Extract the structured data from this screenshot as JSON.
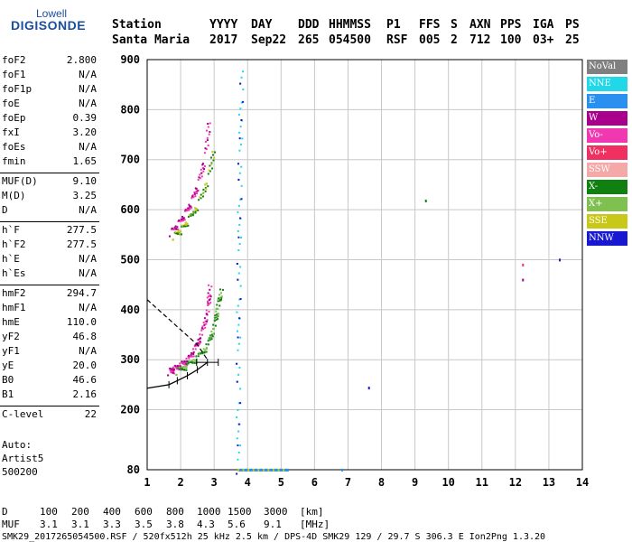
{
  "logo": {
    "top": "Lowell",
    "main": "DIGISONDE"
  },
  "header": {
    "row1": [
      "Station",
      "YYYY",
      "DAY",
      "DDD",
      "HHMMSS",
      "P1",
      "FFS",
      "S",
      "AXN",
      "PPS",
      "IGA",
      "PS"
    ],
    "row2": [
      "Santa Maria",
      "2017",
      "Sep22",
      "265",
      "054500",
      "RSF",
      "005",
      "2",
      "712",
      "100",
      "03+",
      "25"
    ]
  },
  "params_group1": [
    {
      "label": "foF2",
      "value": "2.800"
    },
    {
      "label": "foF1",
      "value": "N/A"
    },
    {
      "label": "foF1p",
      "value": "N/A"
    },
    {
      "label": "foE",
      "value": "N/A"
    },
    {
      "label": "foEp",
      "value": "0.39"
    },
    {
      "label": "fxI",
      "value": "3.20"
    },
    {
      "label": "foEs",
      "value": "N/A"
    },
    {
      "label": "fmin",
      "value": "1.65"
    }
  ],
  "params_group2": [
    {
      "label": "MUF(D)",
      "value": "9.10"
    },
    {
      "label": "M(D)",
      "value": "3.25"
    },
    {
      "label": "D",
      "value": "N/A"
    }
  ],
  "params_group3": [
    {
      "label": "h`F",
      "value": "277.5"
    },
    {
      "label": "h`F2",
      "value": "277.5"
    },
    {
      "label": "h`E",
      "value": "N/A"
    },
    {
      "label": "h`Es",
      "value": "N/A"
    }
  ],
  "params_group4": [
    {
      "label": "hmF2",
      "value": "294.7"
    },
    {
      "label": "hmF1",
      "value": "N/A"
    },
    {
      "label": "hmE",
      "value": "110.0"
    },
    {
      "label": "yF2",
      "value": "46.8"
    },
    {
      "label": "yF1",
      "value": "N/A"
    },
    {
      "label": "yE",
      "value": "20.0"
    },
    {
      "label": "B0",
      "value": "46.6"
    },
    {
      "label": "B1",
      "value": "2.16"
    }
  ],
  "params_group5": [
    {
      "label": "C-level",
      "value": "22"
    }
  ],
  "auto": {
    "line1": "Auto:",
    "line2": "Artist5",
    "line3": "500200"
  },
  "legend": [
    {
      "label": "NoVal",
      "color": "#808080"
    },
    {
      "label": "NNE",
      "color": "#20d8e8"
    },
    {
      "label": "E",
      "color": "#2a90f0"
    },
    {
      "label": "W",
      "color": "#a8008c"
    },
    {
      "label": "Vo-",
      "color": "#f038b0"
    },
    {
      "label": "Vo+",
      "color": "#f03060"
    },
    {
      "label": "SSW",
      "color": "#f4a8a8"
    },
    {
      "label": "X-",
      "color": "#108010"
    },
    {
      "label": "X+",
      "color": "#80c050"
    },
    {
      "label": "SSE",
      "color": "#c8c818"
    },
    {
      "label": "NNW",
      "color": "#1818d0"
    }
  ],
  "bottom": {
    "row_d": [
      "D",
      "100",
      "200",
      "400",
      "600",
      "800",
      "1000",
      "1500",
      "3000",
      "[km]"
    ],
    "row_muf": [
      "MUF",
      "3.1",
      "3.1",
      "3.3",
      "3.5",
      "3.8",
      "4.3",
      "5.6",
      "9.1",
      "[MHz]"
    ],
    "footer": "SMK29_2017265054500.RSF / 520fx512h 25 kHz 2.5 km / DPS-4D SMK29 129 / 29.7 S 306.3 E Ion2Png 1.3.20"
  },
  "chart_data": {
    "type": "scatter",
    "xlim": [
      1,
      14
    ],
    "ylim": [
      80,
      900
    ],
    "x_ticks": [
      "1",
      "2",
      "3",
      "4",
      "5",
      "6",
      "7",
      "8",
      "9",
      "10",
      "11",
      "12",
      "13",
      "14"
    ],
    "y_ticks": [
      "80",
      "200",
      "300",
      "400",
      "500",
      "600",
      "700",
      "800",
      "900"
    ],
    "y_tick_values": [
      80,
      200,
      300,
      400,
      500,
      600,
      700,
      800,
      900
    ],
    "grid": true,
    "profile": {
      "x": [
        1.65,
        1.9,
        2.2,
        2.5,
        2.8
      ],
      "y": [
        250,
        258,
        268,
        280,
        294.7
      ]
    },
    "extrapolation": {
      "x": [
        1.0,
        1.5,
        2.0,
        2.5,
        2.8
      ],
      "y": [
        420,
        390,
        360,
        330,
        300
      ]
    },
    "o_trace_low": {
      "x": [
        1.65,
        1.8,
        2.0,
        2.2,
        2.4,
        2.6,
        2.8,
        2.85
      ],
      "y": [
        277,
        282,
        290,
        300,
        320,
        350,
        400,
        450
      ]
    },
    "x_trace_low": {
      "x": [
        1.9,
        2.2,
        2.5,
        2.8,
        3.0,
        3.1,
        3.2
      ],
      "y": [
        278,
        290,
        305,
        330,
        370,
        410,
        440
      ]
    },
    "o_trace_high": {
      "x": [
        1.7,
        1.9,
        2.1,
        2.3,
        2.5,
        2.7,
        2.85
      ],
      "y": [
        555,
        570,
        590,
        615,
        650,
        700,
        790
      ]
    },
    "x_trace_high": {
      "x": [
        1.8,
        2.0,
        2.2,
        2.5,
        2.8,
        3.0
      ],
      "y": [
        548,
        560,
        578,
        610,
        660,
        730
      ]
    },
    "vertical_trace": {
      "x": [
        3.7,
        3.7,
        3.72,
        3.75,
        3.8
      ],
      "y": [
        80,
        300,
        500,
        700,
        890
      ]
    },
    "scatter_points": [
      {
        "x": 9.3,
        "y": 620,
        "color": "#108010"
      },
      {
        "x": 12.2,
        "y": 492,
        "color": "#f03060"
      },
      {
        "x": 12.2,
        "y": 462,
        "color": "#a8008c"
      },
      {
        "x": 13.3,
        "y": 502,
        "color": "#1818d0"
      },
      {
        "x": 7.6,
        "y": 246,
        "color": "#1818d0"
      },
      {
        "x": 6.8,
        "y": 82,
        "color": "#2a90f0"
      }
    ]
  }
}
